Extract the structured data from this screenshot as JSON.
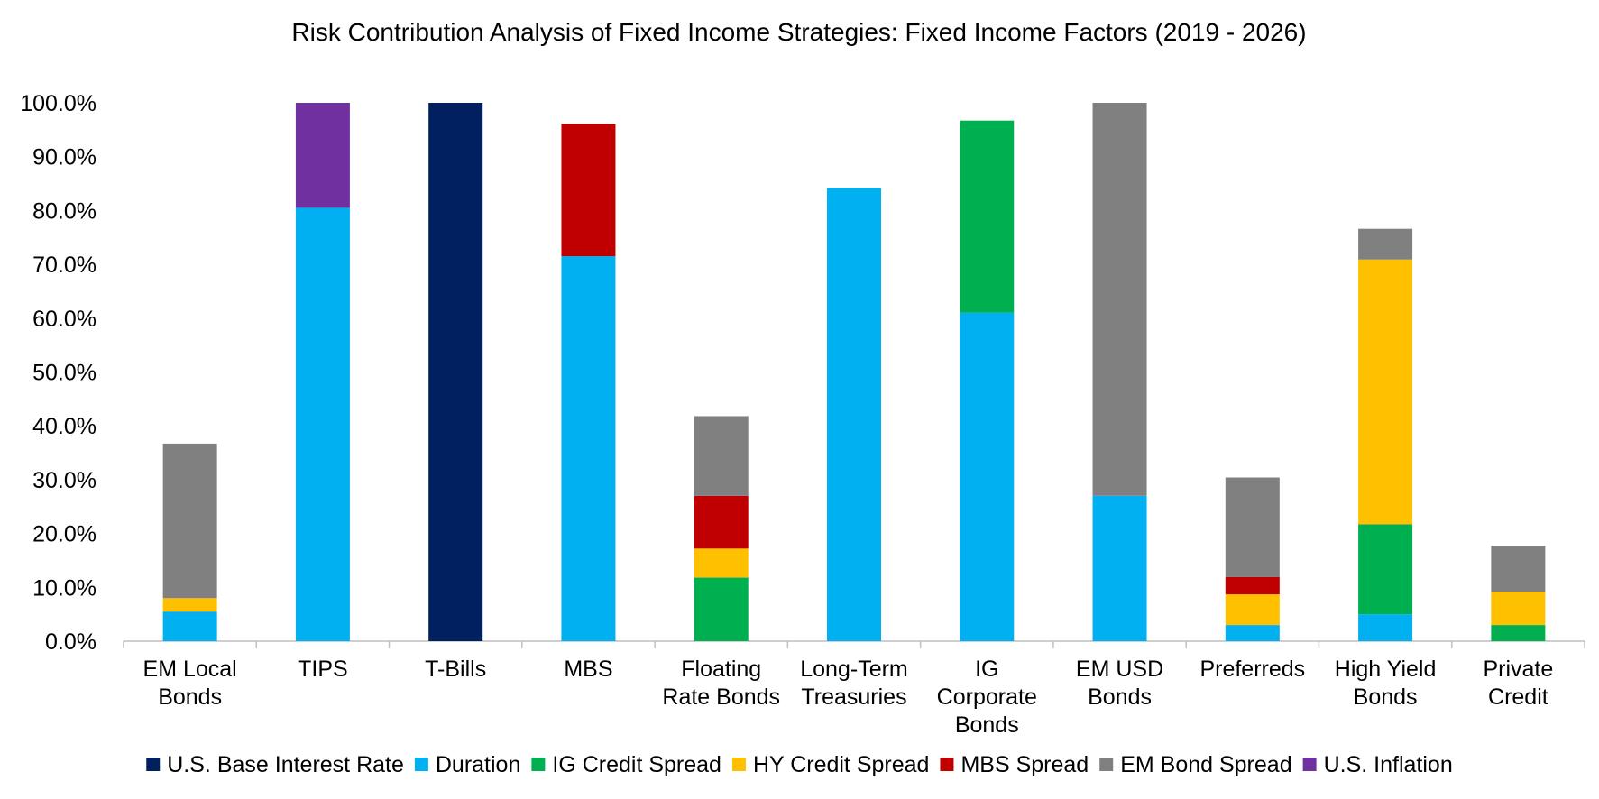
{
  "chart_data": {
    "type": "bar",
    "stacked": true,
    "title": "Risk Contribution Analysis of Fixed Income Strategies: Fixed Income Factors (2019 - 2026)",
    "xlabel": "",
    "ylabel": "",
    "ylim": [
      0,
      100
    ],
    "yticks": [
      "0.0%",
      "10.0%",
      "20.0%",
      "30.0%",
      "40.0%",
      "50.0%",
      "60.0%",
      "70.0%",
      "80.0%",
      "90.0%",
      "100.0%"
    ],
    "grid": false,
    "legend_position": "bottom",
    "categories": [
      [
        "EM Local",
        "Bonds"
      ],
      [
        "TIPS"
      ],
      [
        "T-Bills"
      ],
      [
        "MBS"
      ],
      [
        "Floating",
        "Rate Bonds"
      ],
      [
        "Long-Term",
        "Treasuries"
      ],
      [
        "IG",
        "Corporate",
        "Bonds"
      ],
      [
        "EM USD",
        "Bonds"
      ],
      [
        "Preferreds"
      ],
      [
        "High Yield",
        "Bonds"
      ],
      [
        "Private",
        "Credit"
      ]
    ],
    "series": [
      {
        "name": "U.S. Base Interest Rate",
        "color": "#002060",
        "values": [
          0,
          0,
          100,
          0,
          0,
          0,
          0,
          0,
          0,
          0,
          0
        ]
      },
      {
        "name": "Duration",
        "color": "#00B0F0",
        "values": [
          5.5,
          80.5,
          0,
          71.5,
          0,
          84.2,
          61.0,
          27.0,
          3.0,
          5.0,
          0
        ]
      },
      {
        "name": "IG Credit Spread",
        "color": "#00B050",
        "values": [
          0,
          0,
          0,
          0,
          11.8,
          0,
          35.7,
          0,
          0,
          16.7,
          3.0
        ]
      },
      {
        "name": "HY Credit Spread",
        "color": "#FFC000",
        "values": [
          2.5,
          0,
          0,
          0,
          5.4,
          0,
          0,
          0,
          5.7,
          49.2,
          6.2
        ]
      },
      {
        "name": "MBS Spread",
        "color": "#C00000",
        "values": [
          0,
          0,
          0,
          24.6,
          9.8,
          0,
          0,
          0,
          3.2,
          0,
          0
        ]
      },
      {
        "name": "EM Bond Spread",
        "color": "#808080",
        "values": [
          28.7,
          0,
          0,
          0,
          14.8,
          0,
          0,
          73.0,
          18.5,
          5.7,
          8.5
        ]
      },
      {
        "name": "U.S. Inflation",
        "color": "#7030A0",
        "values": [
          0,
          19.5,
          0,
          0,
          0,
          0,
          0,
          0,
          0,
          0,
          0
        ]
      }
    ]
  }
}
